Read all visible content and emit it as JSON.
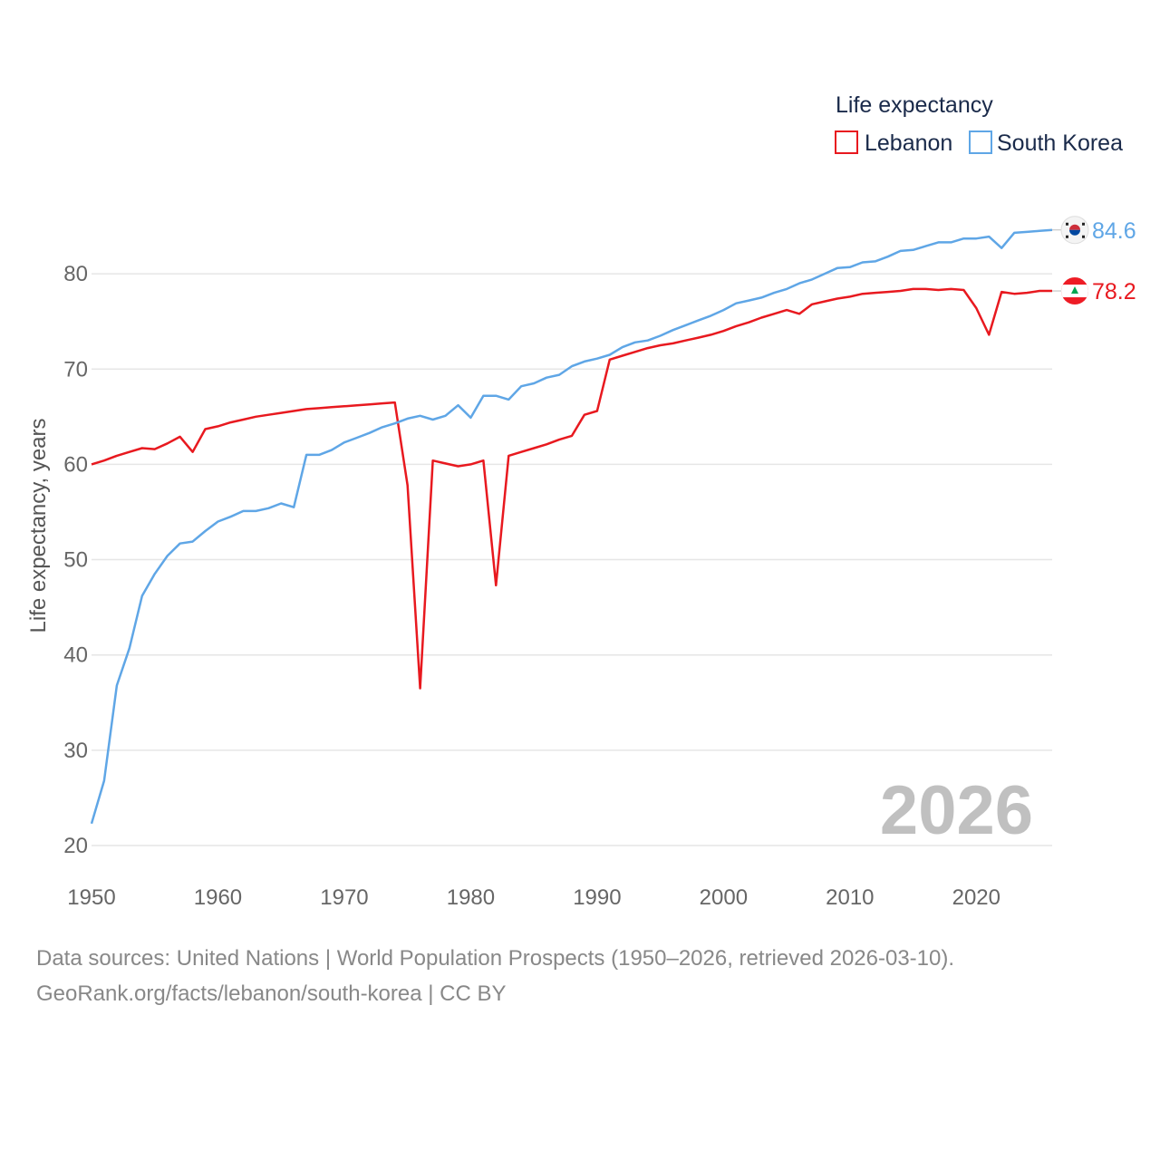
{
  "chart_data": {
    "type": "line",
    "legend_title": "Life expectancy",
    "ylabel": "Life expectancy, years",
    "xlabel": "",
    "xlim": [
      1950,
      2026
    ],
    "ylim": [
      20,
      88
    ],
    "x_ticks": [
      1950,
      1960,
      1970,
      1980,
      1990,
      2000,
      2010,
      2020
    ],
    "y_ticks": [
      20,
      30,
      40,
      50,
      60,
      70,
      80
    ],
    "year_label": "2026",
    "legend_position": "top-right",
    "series": [
      {
        "name": "Lebanon",
        "color": "#e8191f",
        "flag": "lebanon-flag",
        "end_label": "78.2",
        "x": [
          1950,
          1951,
          1952,
          1953,
          1954,
          1955,
          1956,
          1957,
          1958,
          1959,
          1960,
          1961,
          1962,
          1963,
          1964,
          1965,
          1966,
          1967,
          1968,
          1969,
          1970,
          1971,
          1972,
          1973,
          1974,
          1975,
          1976,
          1977,
          1978,
          1979,
          1980,
          1981,
          1982,
          1983,
          1984,
          1985,
          1986,
          1987,
          1988,
          1989,
          1990,
          1991,
          1992,
          1993,
          1994,
          1995,
          1996,
          1997,
          1998,
          1999,
          2000,
          2001,
          2002,
          2003,
          2004,
          2005,
          2006,
          2007,
          2008,
          2009,
          2010,
          2011,
          2012,
          2013,
          2014,
          2015,
          2016,
          2017,
          2018,
          2019,
          2020,
          2021,
          2022,
          2023,
          2024,
          2025,
          2026
        ],
        "values": [
          60.0,
          60.4,
          60.9,
          61.3,
          61.7,
          61.6,
          62.2,
          62.9,
          61.3,
          63.7,
          64.0,
          64.4,
          64.7,
          65.0,
          65.2,
          65.4,
          65.6,
          65.8,
          65.9,
          66.0,
          66.1,
          66.2,
          66.3,
          66.4,
          66.5,
          57.8,
          36.5,
          60.4,
          60.1,
          59.8,
          60.0,
          60.4,
          47.3,
          60.9,
          61.3,
          61.7,
          62.1,
          62.6,
          63.0,
          65.2,
          65.6,
          71.0,
          71.4,
          71.8,
          72.2,
          72.5,
          72.7,
          73.0,
          73.3,
          73.6,
          74.0,
          74.5,
          74.9,
          75.4,
          75.8,
          76.2,
          75.8,
          76.8,
          77.1,
          77.4,
          77.6,
          77.9,
          78.0,
          78.1,
          78.2,
          78.4,
          78.4,
          78.3,
          78.4,
          78.3,
          76.4,
          73.6,
          78.1,
          77.9,
          78.0,
          78.2,
          78.2
        ]
      },
      {
        "name": "South Korea",
        "color": "#5fa6e6",
        "flag": "south-korea-flag",
        "end_label": "84.6",
        "x": [
          1950,
          1951,
          1952,
          1953,
          1954,
          1955,
          1956,
          1957,
          1958,
          1959,
          1960,
          1961,
          1962,
          1963,
          1964,
          1965,
          1966,
          1967,
          1968,
          1969,
          1970,
          1971,
          1972,
          1973,
          1974,
          1975,
          1976,
          1977,
          1978,
          1979,
          1980,
          1981,
          1982,
          1983,
          1984,
          1985,
          1986,
          1987,
          1988,
          1989,
          1990,
          1991,
          1992,
          1993,
          1994,
          1995,
          1996,
          1997,
          1998,
          1999,
          2000,
          2001,
          2002,
          2003,
          2004,
          2005,
          2006,
          2007,
          2008,
          2009,
          2010,
          2011,
          2012,
          2013,
          2014,
          2015,
          2016,
          2017,
          2018,
          2019,
          2020,
          2021,
          2022,
          2023,
          2024,
          2025,
          2026
        ],
        "values": [
          22.3,
          26.8,
          36.8,
          40.7,
          46.2,
          48.5,
          50.4,
          51.7,
          51.9,
          53.0,
          54.0,
          54.5,
          55.1,
          55.1,
          55.4,
          55.9,
          55.5,
          61.0,
          61.0,
          61.5,
          62.3,
          62.8,
          63.3,
          63.9,
          64.3,
          64.8,
          65.1,
          64.7,
          65.1,
          66.2,
          64.9,
          67.2,
          67.2,
          66.8,
          68.2,
          68.5,
          69.1,
          69.4,
          70.3,
          70.8,
          71.1,
          71.5,
          72.3,
          72.8,
          73.0,
          73.5,
          74.1,
          74.6,
          75.1,
          75.6,
          76.2,
          76.9,
          77.2,
          77.5,
          78.0,
          78.4,
          79.0,
          79.4,
          80.0,
          80.6,
          80.7,
          81.2,
          81.3,
          81.8,
          82.4,
          82.5,
          82.9,
          83.3,
          83.3,
          83.7,
          83.7,
          83.9,
          82.7,
          84.3,
          84.4,
          84.5,
          84.6
        ]
      }
    ]
  },
  "footer": {
    "line1": "Data sources: United Nations | World Population Prospects (1950–2026, retrieved 2026-03-10).",
    "line2": "GeoRank.org/facts/lebanon/south-korea | CC BY"
  }
}
